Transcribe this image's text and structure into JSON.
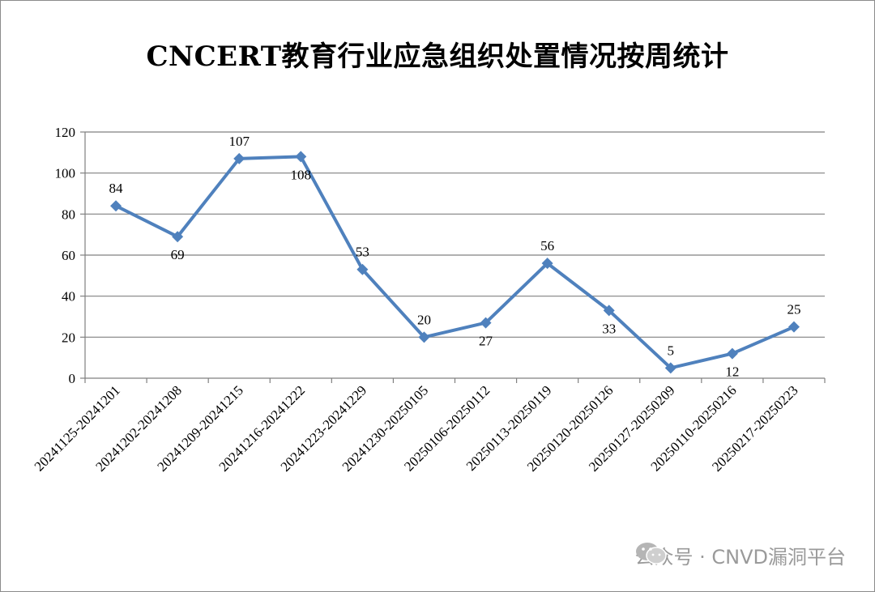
{
  "chart_data": {
    "type": "line",
    "title": "CNCERT教育行业应急组织处置情况按周统计",
    "categories": [
      "20241125-20241201",
      "20241202-20241208",
      "20241209-20241215",
      "20241216-20241222",
      "20241223-20241229",
      "20241230-20250105",
      "20250106-20250112",
      "20250113-20250119",
      "20250120-20250126",
      "20250127-20250209",
      "20250110-20250216",
      "20250217-20250223"
    ],
    "series": [
      {
        "values": [
          84,
          69,
          107,
          108,
          53,
          20,
          27,
          56,
          33,
          5,
          12,
          25
        ]
      }
    ],
    "label_positions": [
      "above",
      "below",
      "above",
      "below",
      "above",
      "above",
      "below",
      "above",
      "below",
      "above",
      "below",
      "above"
    ],
    "ylim": [
      0,
      120
    ],
    "yticks": [
      0,
      20,
      40,
      60,
      80,
      100,
      120
    ],
    "grid": true,
    "line_color": "#4f81bd",
    "grid_color": "#808080"
  },
  "watermark": {
    "text": "公众号 · CNVD漏洞平台",
    "icon": "wechat-icon"
  }
}
